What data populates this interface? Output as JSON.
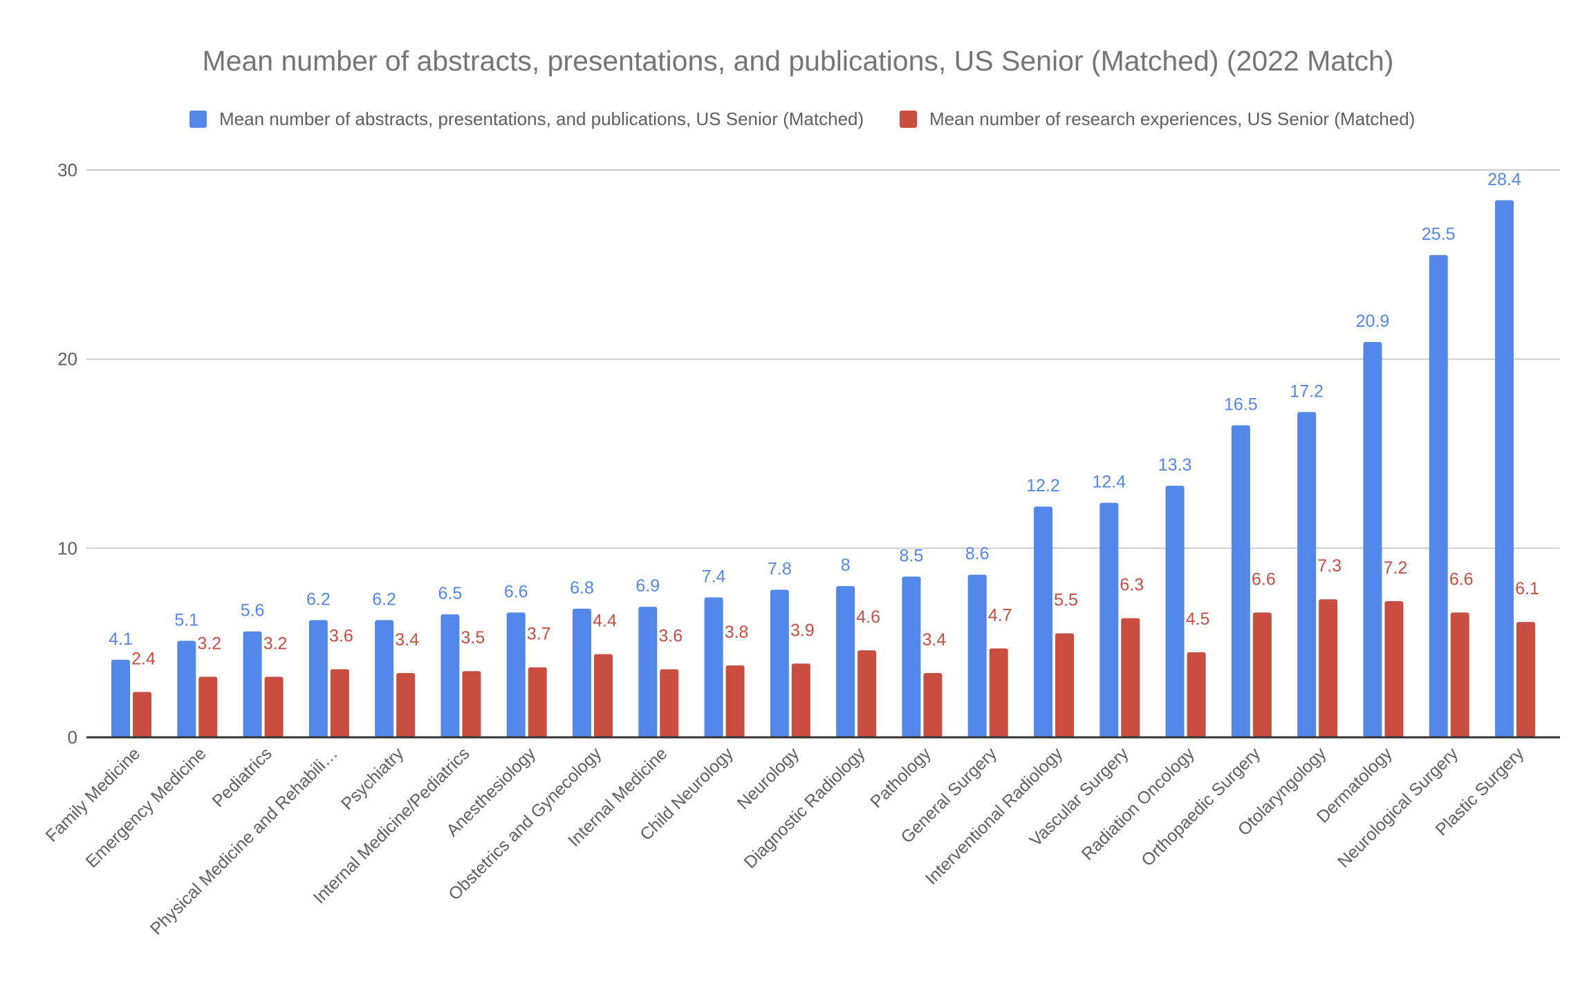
{
  "chart_data": {
    "type": "bar",
    "title": "Mean number of abstracts, presentations, and publications, US Senior (Matched) (2022 Match)",
    "xlabel": "",
    "ylabel": "",
    "ylim": [
      0,
      30
    ],
    "yticks": [
      "0",
      "10",
      "20",
      "30"
    ],
    "grid": true,
    "legend_position": "top",
    "categories": [
      "Family Medicine",
      "Emergency Medicine",
      "Pediatrics",
      "Physical Medicine and Rehabili…",
      "Psychiatry",
      "Internal Medicine/Pediatrics",
      "Anesthesiology",
      "Obstetrics and Gynecology",
      "Internal Medicine",
      "Child Neurology",
      "Neurology",
      "Diagnostic Radiology",
      "Pathology",
      "General Surgery",
      "Interventional Radiology",
      "Vascular Surgery",
      "Radiation Oncology",
      "Orthopaedic Surgery",
      "Otolaryngology",
      "Dermatology",
      "Neurological Surgery",
      "Plastic Surgery"
    ],
    "series": [
      {
        "name": "Mean number of abstracts, presentations, and publications, US Senior (Matched)",
        "color": "#5387e8",
        "values": [
          4.1,
          5.1,
          5.6,
          6.2,
          6.2,
          6.5,
          6.6,
          6.8,
          6.9,
          7.4,
          7.8,
          8,
          8.5,
          8.6,
          12.2,
          12.4,
          13.3,
          16.5,
          17.2,
          20.9,
          25.5,
          28.4
        ]
      },
      {
        "name": "Mean number of research experiences, US Senior (Matched)",
        "color": "#c84e42",
        "values": [
          2.4,
          3.2,
          3.2,
          3.6,
          3.4,
          3.5,
          3.7,
          4.4,
          3.6,
          3.8,
          3.9,
          4.6,
          3.4,
          4.7,
          5.5,
          6.3,
          4.5,
          6.6,
          7.3,
          7.2,
          6.6,
          6.1
        ]
      }
    ]
  }
}
